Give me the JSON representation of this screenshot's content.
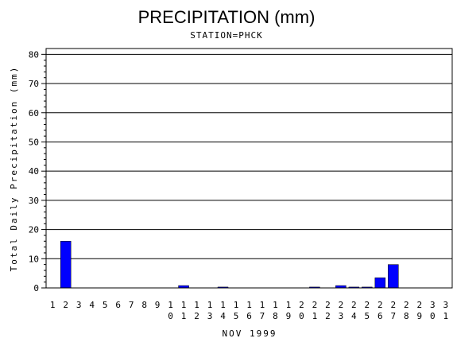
{
  "chart_data": {
    "type": "bar",
    "title": "PRECIPITATION (mm)",
    "subtitle": "STATION=PHCK",
    "xlabel": "NOV 1999",
    "ylabel": "Total Daily Precipitation (mm)",
    "ylim": [
      0,
      82
    ],
    "yticks": [
      0,
      10,
      20,
      30,
      40,
      50,
      60,
      70,
      80
    ],
    "grid": true,
    "categories": [
      "1",
      "2",
      "3",
      "4",
      "5",
      "6",
      "7",
      "8",
      "9",
      "10",
      "11",
      "12",
      "13",
      "14",
      "15",
      "16",
      "17",
      "18",
      "19",
      "20",
      "21",
      "22",
      "23",
      "24",
      "25",
      "26",
      "27",
      "28",
      "29",
      "30",
      "31"
    ],
    "values": [
      0,
      16,
      0,
      0,
      0,
      0,
      0,
      0,
      0,
      0,
      0.8,
      0,
      0,
      0.3,
      0,
      0,
      0,
      0,
      0,
      0,
      0.3,
      0,
      0.8,
      0.3,
      0.3,
      3.5,
      8,
      0,
      0,
      0,
      0
    ],
    "bar_color": "#0000ff"
  }
}
